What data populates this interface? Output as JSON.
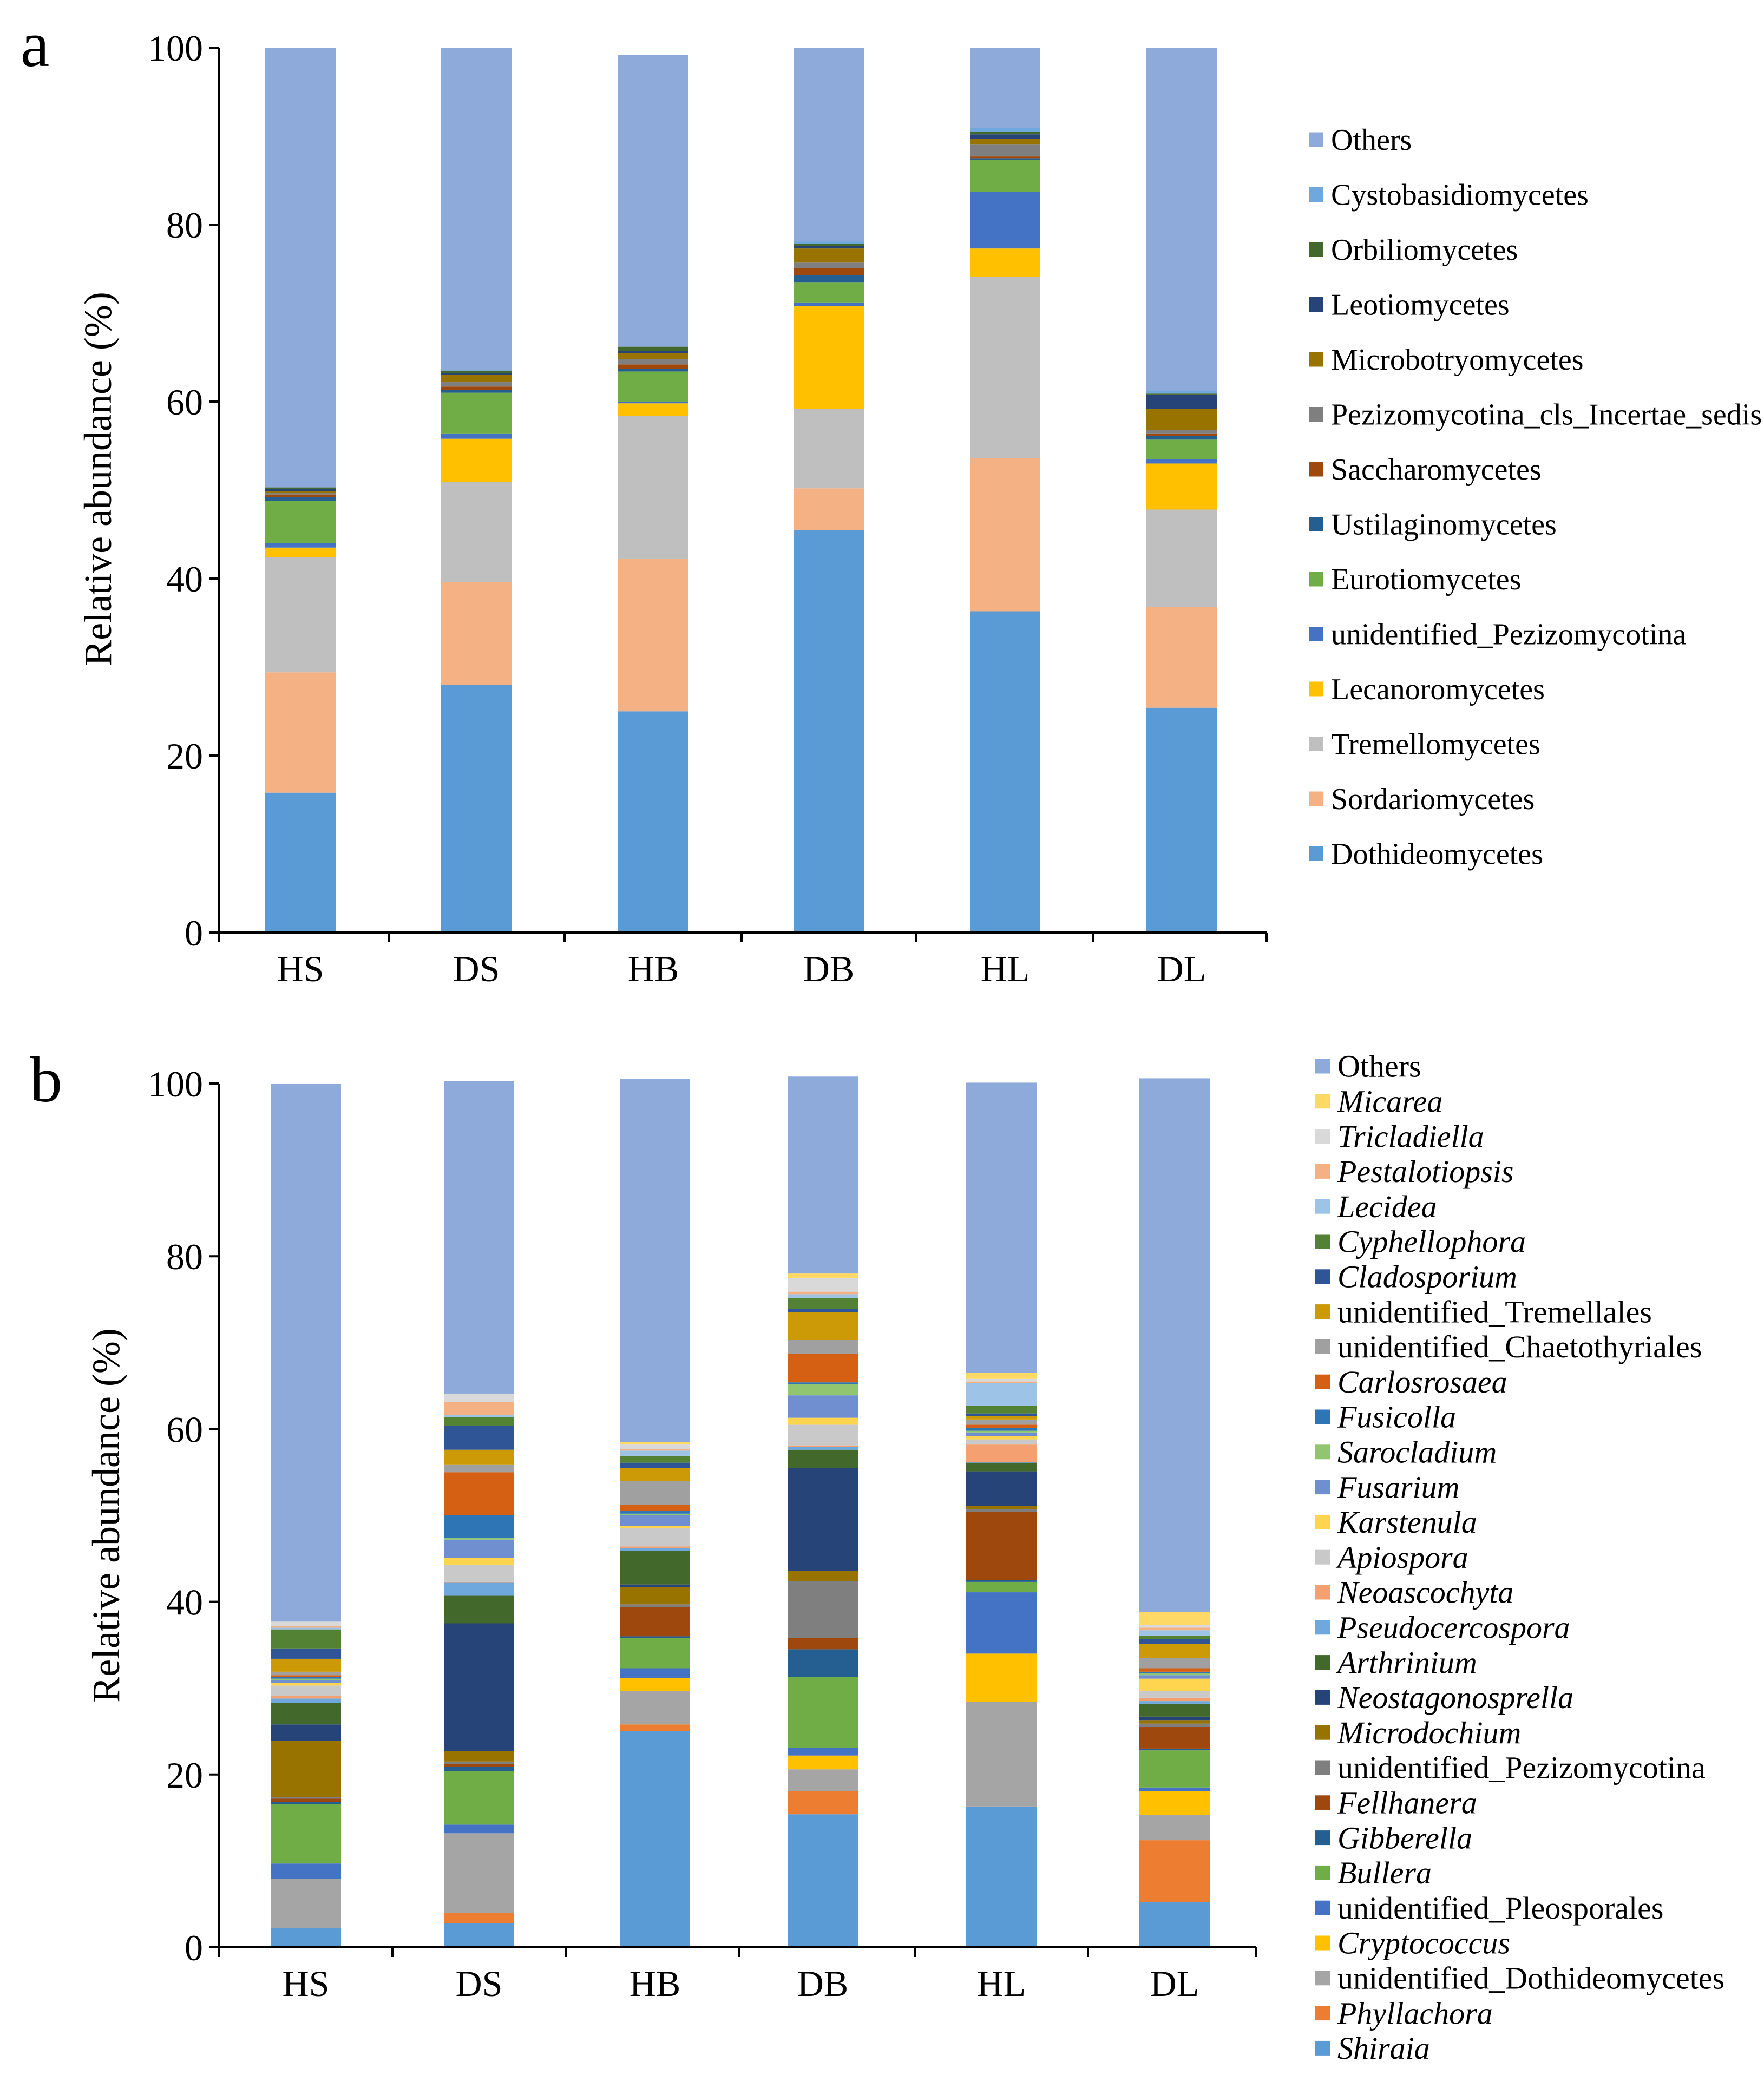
{
  "figure": {
    "panels": [
      "a",
      "b"
    ],
    "ylabel": "Relative abundance (%)"
  },
  "chart_data": [
    {
      "panel": "a",
      "type": "bar",
      "stacked": true,
      "title": "",
      "xlabel": "",
      "ylabel": "Relative abundance (%)",
      "ylim": [
        0,
        100
      ],
      "yticks": [
        0,
        20,
        40,
        60,
        80,
        100
      ],
      "categories": [
        "HS",
        "DS",
        "HB",
        "DB",
        "HL",
        "DL"
      ],
      "legend_position": "right",
      "series": [
        {
          "name": "Dothideomycetes",
          "color": "#5b9bd5",
          "values": [
            15.8,
            28.0,
            25.0,
            45.5,
            36.3,
            25.4
          ]
        },
        {
          "name": "Sordariomycetes",
          "color": "#f4b183",
          "values": [
            13.6,
            11.6,
            17.2,
            4.7,
            17.3,
            11.4
          ]
        },
        {
          "name": "Tremellomycetes",
          "color": "#bfbfbf",
          "values": [
            13.0,
            11.3,
            16.2,
            9.0,
            20.5,
            11.0
          ]
        },
        {
          "name": "Lecanoromycetes",
          "color": "#ffc000",
          "values": [
            1.1,
            4.9,
            1.4,
            11.6,
            3.2,
            5.2
          ]
        },
        {
          "name": "unidentified_Pezizomycotina",
          "color": "#4472c4",
          "values": [
            0.5,
            0.6,
            0.2,
            0.4,
            6.4,
            0.5
          ]
        },
        {
          "name": "Eurotiomycetes",
          "color": "#70ad47",
          "values": [
            4.8,
            4.6,
            3.4,
            2.3,
            3.6,
            2.2
          ]
        },
        {
          "name": "Ustilaginomycetes",
          "color": "#255e91",
          "values": [
            0.4,
            0.3,
            0.3,
            0.8,
            0.2,
            0.4
          ]
        },
        {
          "name": "Saccharomycetes",
          "color": "#9e480e",
          "values": [
            0.3,
            0.4,
            0.5,
            0.8,
            0.2,
            0.3
          ]
        },
        {
          "name": "Pezizomycotina_cls_Incertae_sedis",
          "color": "#7f7f7f",
          "values": [
            0.2,
            0.5,
            0.6,
            0.6,
            1.4,
            0.4
          ]
        },
        {
          "name": "Microbotryomycetes",
          "color": "#997300",
          "values": [
            0.2,
            0.8,
            0.7,
            1.6,
            0.6,
            2.4
          ]
        },
        {
          "name": "Leotiomycetes",
          "color": "#264478",
          "values": [
            0.2,
            0.2,
            0.2,
            0.3,
            0.5,
            1.6
          ]
        },
        {
          "name": "Orbiliomycetes",
          "color": "#43682b",
          "values": [
            0.2,
            0.3,
            0.5,
            0.2,
            0.3,
            0.1
          ]
        },
        {
          "name": "Cystobasidiomycetes",
          "color": "#6fa8dc",
          "values": [
            0.0,
            0.1,
            0.0,
            0.3,
            0.4,
            0.3
          ]
        },
        {
          "name": "Others",
          "color": "#8eaadb",
          "values": [
            49.7,
            36.4,
            33.0,
            21.9,
            9.1,
            38.8
          ]
        }
      ]
    },
    {
      "panel": "b",
      "type": "bar",
      "stacked": true,
      "title": "",
      "xlabel": "",
      "ylabel": "Relative abundance (%)",
      "ylim": [
        0,
        100
      ],
      "yticks": [
        0,
        20,
        40,
        60,
        80,
        100
      ],
      "categories": [
        "HS",
        "DS",
        "HB",
        "DB",
        "HL",
        "DL"
      ],
      "legend_position": "right",
      "series": [
        {
          "name": "Shiraia",
          "italic": true,
          "color": "#5b9bd5",
          "values": [
            2.2,
            2.8,
            25.0,
            15.4,
            16.3,
            5.2
          ]
        },
        {
          "name": "Phyllachora",
          "italic": true,
          "color": "#ed7d31",
          "values": [
            0.0,
            1.2,
            0.8,
            2.7,
            0.0,
            7.2
          ]
        },
        {
          "name": "unidentified_Dothideomycetes",
          "italic": false,
          "color": "#a5a5a5",
          "values": [
            5.7,
            9.2,
            3.9,
            2.5,
            12.1,
            2.9
          ]
        },
        {
          "name": "Cryptococcus",
          "italic": true,
          "color": "#ffc000",
          "values": [
            0.0,
            0.0,
            1.5,
            1.6,
            5.6,
            2.8
          ]
        },
        {
          "name": "unidentified_Pleosporales",
          "italic": false,
          "color": "#4472c4",
          "values": [
            1.8,
            1.0,
            1.1,
            0.9,
            7.1,
            0.4
          ]
        },
        {
          "name": "Bullera",
          "italic": true,
          "color": "#70ad47",
          "values": [
            6.9,
            6.2,
            3.5,
            8.2,
            1.2,
            4.3
          ]
        },
        {
          "name": "Gibberella",
          "italic": true,
          "color": "#255e91",
          "values": [
            0.2,
            0.5,
            0.2,
            3.2,
            0.2,
            0.2
          ]
        },
        {
          "name": "Fellhanera",
          "italic": true,
          "color": "#9e480e",
          "values": [
            0.4,
            0.3,
            3.4,
            1.3,
            7.9,
            2.5
          ]
        },
        {
          "name": "unidentified_Pezizomycotina",
          "italic": false,
          "color": "#7f7f7f",
          "values": [
            0.2,
            0.3,
            0.3,
            6.6,
            0.3,
            0.4
          ]
        },
        {
          "name": "Microdochium",
          "italic": true,
          "color": "#997300",
          "values": [
            6.5,
            1.2,
            2.0,
            1.2,
            0.4,
            0.4
          ]
        },
        {
          "name": "Neostagonosprella",
          "italic": true,
          "color": "#264478",
          "values": [
            1.9,
            14.8,
            0.3,
            11.9,
            4.0,
            0.4
          ]
        },
        {
          "name": "Arthrinium",
          "italic": true,
          "color": "#43682b",
          "values": [
            2.5,
            3.2,
            3.9,
            2.1,
            1.0,
            1.5
          ]
        },
        {
          "name": "Pseudocercospora",
          "italic": true,
          "color": "#6fa8dc",
          "values": [
            0.5,
            1.5,
            0.3,
            0.3,
            0.1,
            0.3
          ]
        },
        {
          "name": "Neoascochyta",
          "italic": true,
          "color": "#f4a071",
          "values": [
            0.3,
            0.1,
            0.2,
            0.2,
            2.0,
            0.4
          ]
        },
        {
          "name": "Apiospora",
          "italic": true,
          "color": "#c9c9c9",
          "values": [
            1.2,
            2.0,
            2.1,
            2.4,
            0.6,
            0.8
          ]
        },
        {
          "name": "Karstenula",
          "italic": true,
          "color": "#ffd54f",
          "values": [
            0.3,
            0.8,
            0.3,
            0.8,
            0.4,
            1.4
          ]
        },
        {
          "name": "Fusarium",
          "italic": true,
          "color": "#6f8fd0",
          "values": [
            0.3,
            2.1,
            1.2,
            2.6,
            0.4,
            0.4
          ]
        },
        {
          "name": "Sarocladium",
          "italic": true,
          "color": "#92c56f",
          "values": [
            0.2,
            0.2,
            0.2,
            1.3,
            0.2,
            0.2
          ]
        },
        {
          "name": "Fusicolla",
          "italic": true,
          "color": "#2e75b6",
          "values": [
            0.2,
            2.6,
            0.3,
            0.2,
            0.3,
            0.2
          ]
        },
        {
          "name": "Carlosrosaea",
          "italic": true,
          "color": "#d55f12",
          "values": [
            0.2,
            5.0,
            0.7,
            3.3,
            0.4,
            0.4
          ]
        },
        {
          "name": "unidentified_Chaetothyriales",
          "italic": false,
          "color": "#a0a0a0",
          "values": [
            0.4,
            0.9,
            2.8,
            1.6,
            0.6,
            1.2
          ]
        },
        {
          "name": "unidentified_Tremellales",
          "italic": false,
          "color": "#cc9a06",
          "values": [
            1.5,
            1.7,
            1.5,
            3.2,
            0.4,
            1.6
          ]
        },
        {
          "name": "Cladosporium",
          "italic": true,
          "color": "#2f5597",
          "values": [
            1.2,
            2.8,
            0.6,
            0.4,
            0.3,
            0.6
          ]
        },
        {
          "name": "Cyphellophora",
          "italic": true,
          "color": "#548235",
          "values": [
            2.2,
            1.0,
            0.8,
            1.3,
            0.9,
            0.4
          ]
        },
        {
          "name": "Lecidea",
          "italic": true,
          "color": "#9dc3e6",
          "values": [
            0.2,
            0.2,
            0.6,
            0.4,
            2.6,
            0.6
          ]
        },
        {
          "name": "Pestalotiopsis",
          "italic": true,
          "color": "#f4b183",
          "values": [
            0.2,
            1.5,
            0.2,
            0.3,
            0.2,
            0.3
          ]
        },
        {
          "name": "Tricladiella",
          "italic": true,
          "color": "#d9d9d9",
          "values": [
            0.5,
            1.0,
            0.5,
            1.6,
            0.3,
            0.3
          ]
        },
        {
          "name": "Micarea",
          "italic": true,
          "color": "#ffd966",
          "values": [
            0.0,
            0.0,
            0.3,
            0.5,
            0.7,
            1.5
          ]
        },
        {
          "name": "Others",
          "italic": false,
          "color": "#8eaadb",
          "values": [
            62.3,
            36.2,
            42.0,
            22.8,
            33.6,
            61.8
          ]
        }
      ]
    }
  ]
}
